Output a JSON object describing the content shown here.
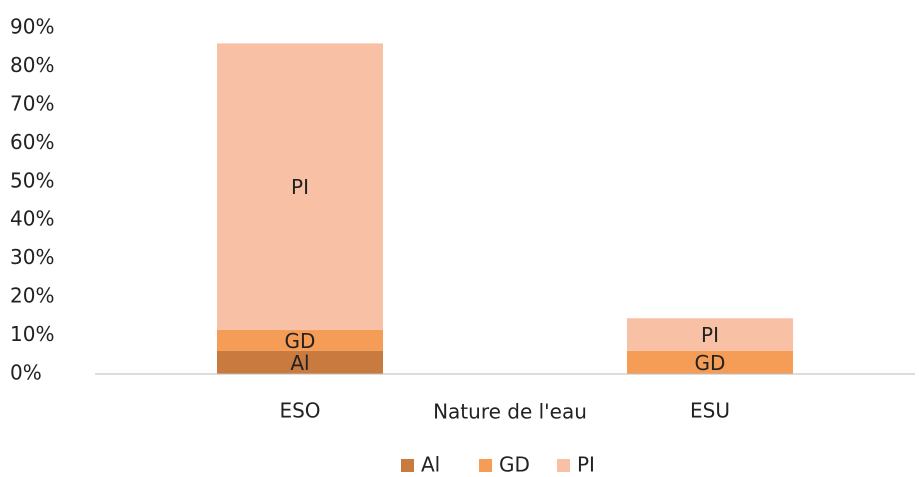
{
  "chart_data": {
    "type": "stacked_bar",
    "x_label": "Nature de l'eau",
    "categories": [
      "ESO",
      "ESU"
    ],
    "series": [
      {
        "name": "Al",
        "color": "#c97a3e",
        "values": [
          6,
          null
        ]
      },
      {
        "name": "GD",
        "color": "#f59d56",
        "values": [
          5.5,
          6
        ]
      },
      {
        "name": "PI",
        "color": "#f8c1a6",
        "values": [
          74.5,
          8.5
        ]
      }
    ],
    "ylim": [
      0,
      90
    ],
    "yticks": [
      {
        "value": 0,
        "label": "0%"
      },
      {
        "value": 10,
        "label": "10%"
      },
      {
        "value": 20,
        "label": "20%"
      },
      {
        "value": 30,
        "label": "30%"
      },
      {
        "value": 40,
        "label": "40%"
      },
      {
        "value": 50,
        "label": "50%"
      },
      {
        "value": 60,
        "label": "60%"
      },
      {
        "value": 70,
        "label": "70%"
      },
      {
        "value": 80,
        "label": "80%"
      },
      {
        "value": 90,
        "label": "90%"
      }
    ],
    "grid": false,
    "legend": "bottom"
  }
}
